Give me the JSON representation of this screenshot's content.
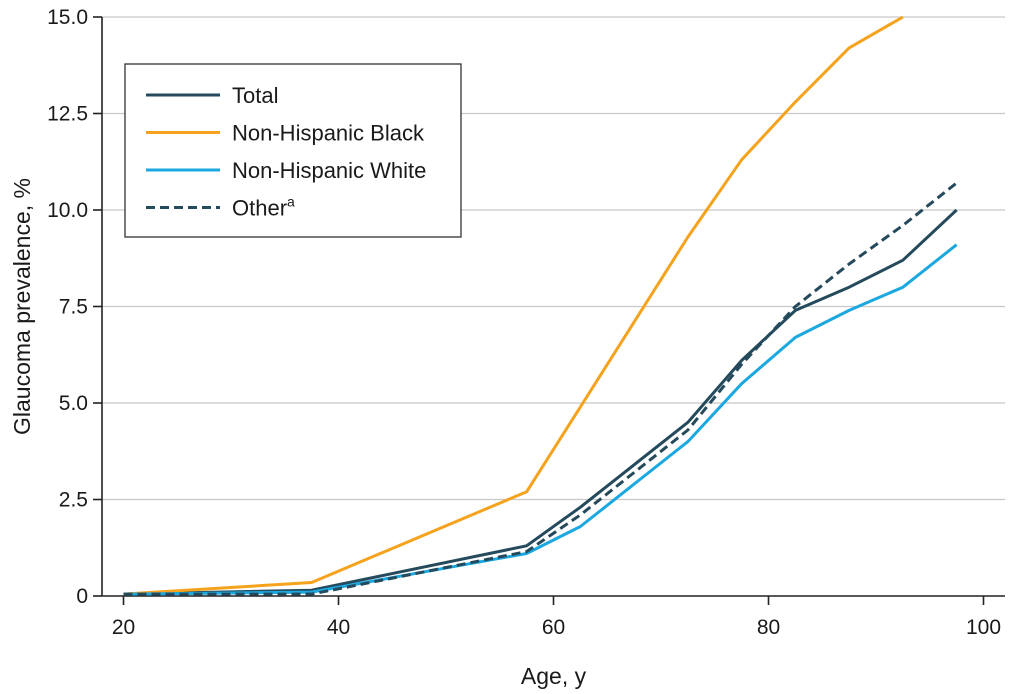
{
  "chart_data": {
    "type": "line",
    "title": "",
    "xlabel": "Age, y",
    "ylabel": "Glaucoma prevalence, %",
    "xlim": [
      18,
      102
    ],
    "ylim": [
      0,
      15
    ],
    "x_ticks": [
      20,
      40,
      60,
      80,
      100
    ],
    "y_ticks": [
      0,
      2.5,
      5.0,
      7.5,
      10.0,
      12.5,
      15.0
    ],
    "x_tick_labels": [
      "20",
      "40",
      "60",
      "80",
      "100"
    ],
    "y_tick_labels": [
      "0",
      "2.5",
      "5.0",
      "7.5",
      "10.0",
      "12.5",
      "15.0"
    ],
    "grid": "horizontal",
    "legend_position": "top-left",
    "series": [
      {
        "name": "Total",
        "color": "#244a5c",
        "dash": "solid",
        "x": [
          20,
          37.5,
          57.5,
          62.5,
          72.5,
          77.5,
          82.5,
          87.5,
          92.5,
          97.5
        ],
        "y": [
          0.05,
          0.15,
          1.3,
          2.3,
          4.5,
          6.1,
          7.4,
          8.0,
          8.7,
          10.0
        ]
      },
      {
        "name": "Non-Hispanic Black",
        "color": "#f5a21d",
        "dash": "solid",
        "x": [
          20,
          37.5,
          57.5,
          62.5,
          72.5,
          77.5,
          82.5,
          87.5,
          92.5
        ],
        "y": [
          0.05,
          0.35,
          2.7,
          4.9,
          9.3,
          11.3,
          12.8,
          14.2,
          15.0
        ]
      },
      {
        "name": "Non-Hispanic White",
        "color": "#1ba8e0",
        "dash": "solid",
        "x": [
          20,
          37.5,
          57.5,
          62.5,
          72.5,
          77.5,
          82.5,
          87.5,
          92.5,
          97.5
        ],
        "y": [
          0.05,
          0.1,
          1.1,
          1.8,
          4.0,
          5.5,
          6.7,
          7.4,
          8.0,
          9.1
        ]
      },
      {
        "name": "Other",
        "name_superscript": "a",
        "color": "#244a5c",
        "dash": "dashed",
        "x": [
          20,
          37.5,
          57.5,
          62.5,
          72.5,
          77.5,
          82.5,
          87.5,
          92.5,
          97.5
        ],
        "y": [
          0.05,
          0.05,
          1.15,
          2.1,
          4.3,
          6.0,
          7.5,
          8.6,
          9.6,
          10.7
        ]
      }
    ]
  }
}
